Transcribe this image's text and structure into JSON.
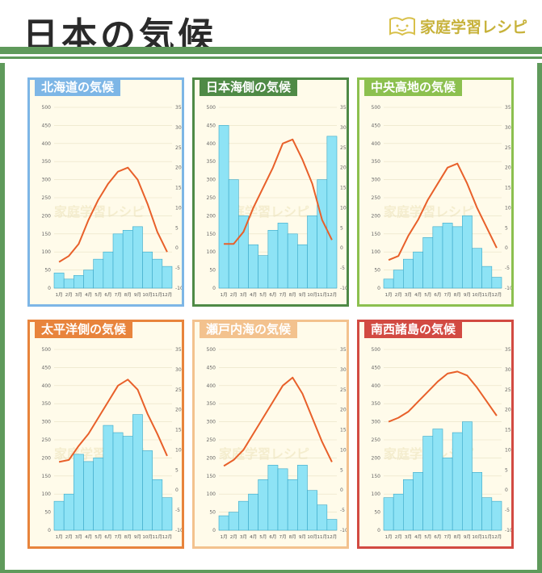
{
  "page": {
    "title": "日本の気候",
    "brand": "家庭学習レシピ",
    "watermark": "家庭学習レシピ"
  },
  "colors": {
    "bar_fill": "#8ee3f5",
    "bar_stroke": "#3aa8c8",
    "line": "#e8602a",
    "page_green": "#5f9a5b"
  },
  "axes": {
    "left_ticks": [
      "0",
      "50",
      "100",
      "150",
      "200",
      "250",
      "300",
      "350",
      "400",
      "450",
      "500"
    ],
    "right_ticks": [
      "-10",
      "-5",
      "0",
      "5",
      "10",
      "15",
      "20",
      "25",
      "30",
      "35"
    ],
    "months": [
      "1月",
      "2月",
      "3月",
      "4月",
      "5月",
      "6月",
      "7月",
      "8月",
      "9月",
      "10月",
      "11月",
      "12月"
    ]
  },
  "chart_data": [
    {
      "type": "bar",
      "title": "北海道の気候",
      "color": "#7db6e6",
      "categories": [
        "1月",
        "2月",
        "3月",
        "4月",
        "5月",
        "6月",
        "7月",
        "8月",
        "9月",
        "10月",
        "11月",
        "12月"
      ],
      "ylim": [
        0,
        500
      ],
      "y2lim": [
        -10,
        35
      ],
      "series": [
        {
          "values": [
            42,
            25,
            35,
            50,
            80,
            100,
            150,
            160,
            170,
            100,
            80,
            60
          ]
        },
        {
          "values": [
            -3.5,
            -2,
            1,
            7,
            12,
            16,
            19,
            20,
            17,
            11,
            4,
            -1
          ]
        }
      ]
    },
    {
      "type": "bar",
      "title": "日本海側の気候",
      "color": "#4f8a46",
      "categories": [
        "1月",
        "2月",
        "3月",
        "4月",
        "5月",
        "6月",
        "7月",
        "8月",
        "9月",
        "10月",
        "11月",
        "12月"
      ],
      "ylim": [
        0,
        500
      ],
      "y2lim": [
        -10,
        35
      ],
      "series": [
        {
          "values": [
            450,
            300,
            200,
            120,
            90,
            160,
            180,
            150,
            120,
            200,
            300,
            420
          ]
        },
        {
          "values": [
            1,
            1,
            4,
            10,
            15,
            20,
            26,
            27,
            22,
            16,
            7,
            2
          ]
        }
      ]
    },
    {
      "type": "bar",
      "title": "中央高地の気候",
      "color": "#8cc04f",
      "categories": [
        "1月",
        "2月",
        "3月",
        "4月",
        "5月",
        "6月",
        "7月",
        "8月",
        "9月",
        "10月",
        "11月",
        "12月"
      ],
      "ylim": [
        0,
        500
      ],
      "y2lim": [
        -10,
        35
      ],
      "series": [
        {
          "values": [
            25,
            50,
            80,
            100,
            140,
            170,
            180,
            170,
            200,
            110,
            60,
            30
          ]
        },
        {
          "values": [
            -3,
            -2,
            3,
            7,
            12,
            16,
            20,
            21,
            16,
            10,
            5,
            0
          ]
        }
      ]
    },
    {
      "type": "bar",
      "title": "太平洋側の気候",
      "color": "#e8843c",
      "categories": [
        "1月",
        "2月",
        "3月",
        "4月",
        "5月",
        "6月",
        "7月",
        "8月",
        "9月",
        "10月",
        "11月",
        "12月"
      ],
      "ylim": [
        0,
        500
      ],
      "y2lim": [
        -10,
        35
      ],
      "series": [
        {
          "values": [
            80,
            100,
            210,
            190,
            200,
            290,
            270,
            260,
            320,
            220,
            140,
            90
          ]
        },
        {
          "values": [
            7,
            7.5,
            11,
            14,
            18,
            22,
            26,
            27.5,
            25,
            19,
            14,
            8.5
          ]
        }
      ]
    },
    {
      "type": "bar",
      "title": "瀬戸内海の気候",
      "color": "#f3c28e",
      "categories": [
        "1月",
        "2月",
        "3月",
        "4月",
        "5月",
        "6月",
        "7月",
        "8月",
        "9月",
        "10月",
        "11月",
        "12月"
      ],
      "ylim": [
        0,
        500
      ],
      "y2lim": [
        -10,
        35
      ],
      "series": [
        {
          "values": [
            40,
            50,
            80,
            100,
            140,
            180,
            170,
            140,
            180,
            110,
            70,
            30
          ]
        },
        {
          "values": [
            6,
            7.5,
            10,
            14,
            18,
            22,
            26,
            28,
            24,
            18,
            12,
            7
          ]
        }
      ]
    },
    {
      "type": "bar",
      "title": "南西諸島の気候",
      "color": "#d24a42",
      "categories": [
        "1月",
        "2月",
        "3月",
        "4月",
        "5月",
        "6月",
        "7月",
        "8月",
        "9月",
        "10月",
        "11月",
        "12月"
      ],
      "ylim": [
        0,
        500
      ],
      "y2lim": [
        -10,
        35
      ],
      "series": [
        {
          "values": [
            90,
            100,
            140,
            160,
            260,
            280,
            200,
            270,
            300,
            160,
            90,
            80
          ]
        },
        {
          "values": [
            17,
            18,
            19.5,
            22,
            24.5,
            27,
            29,
            29.5,
            28.5,
            25.5,
            22,
            18.5
          ]
        }
      ]
    }
  ]
}
